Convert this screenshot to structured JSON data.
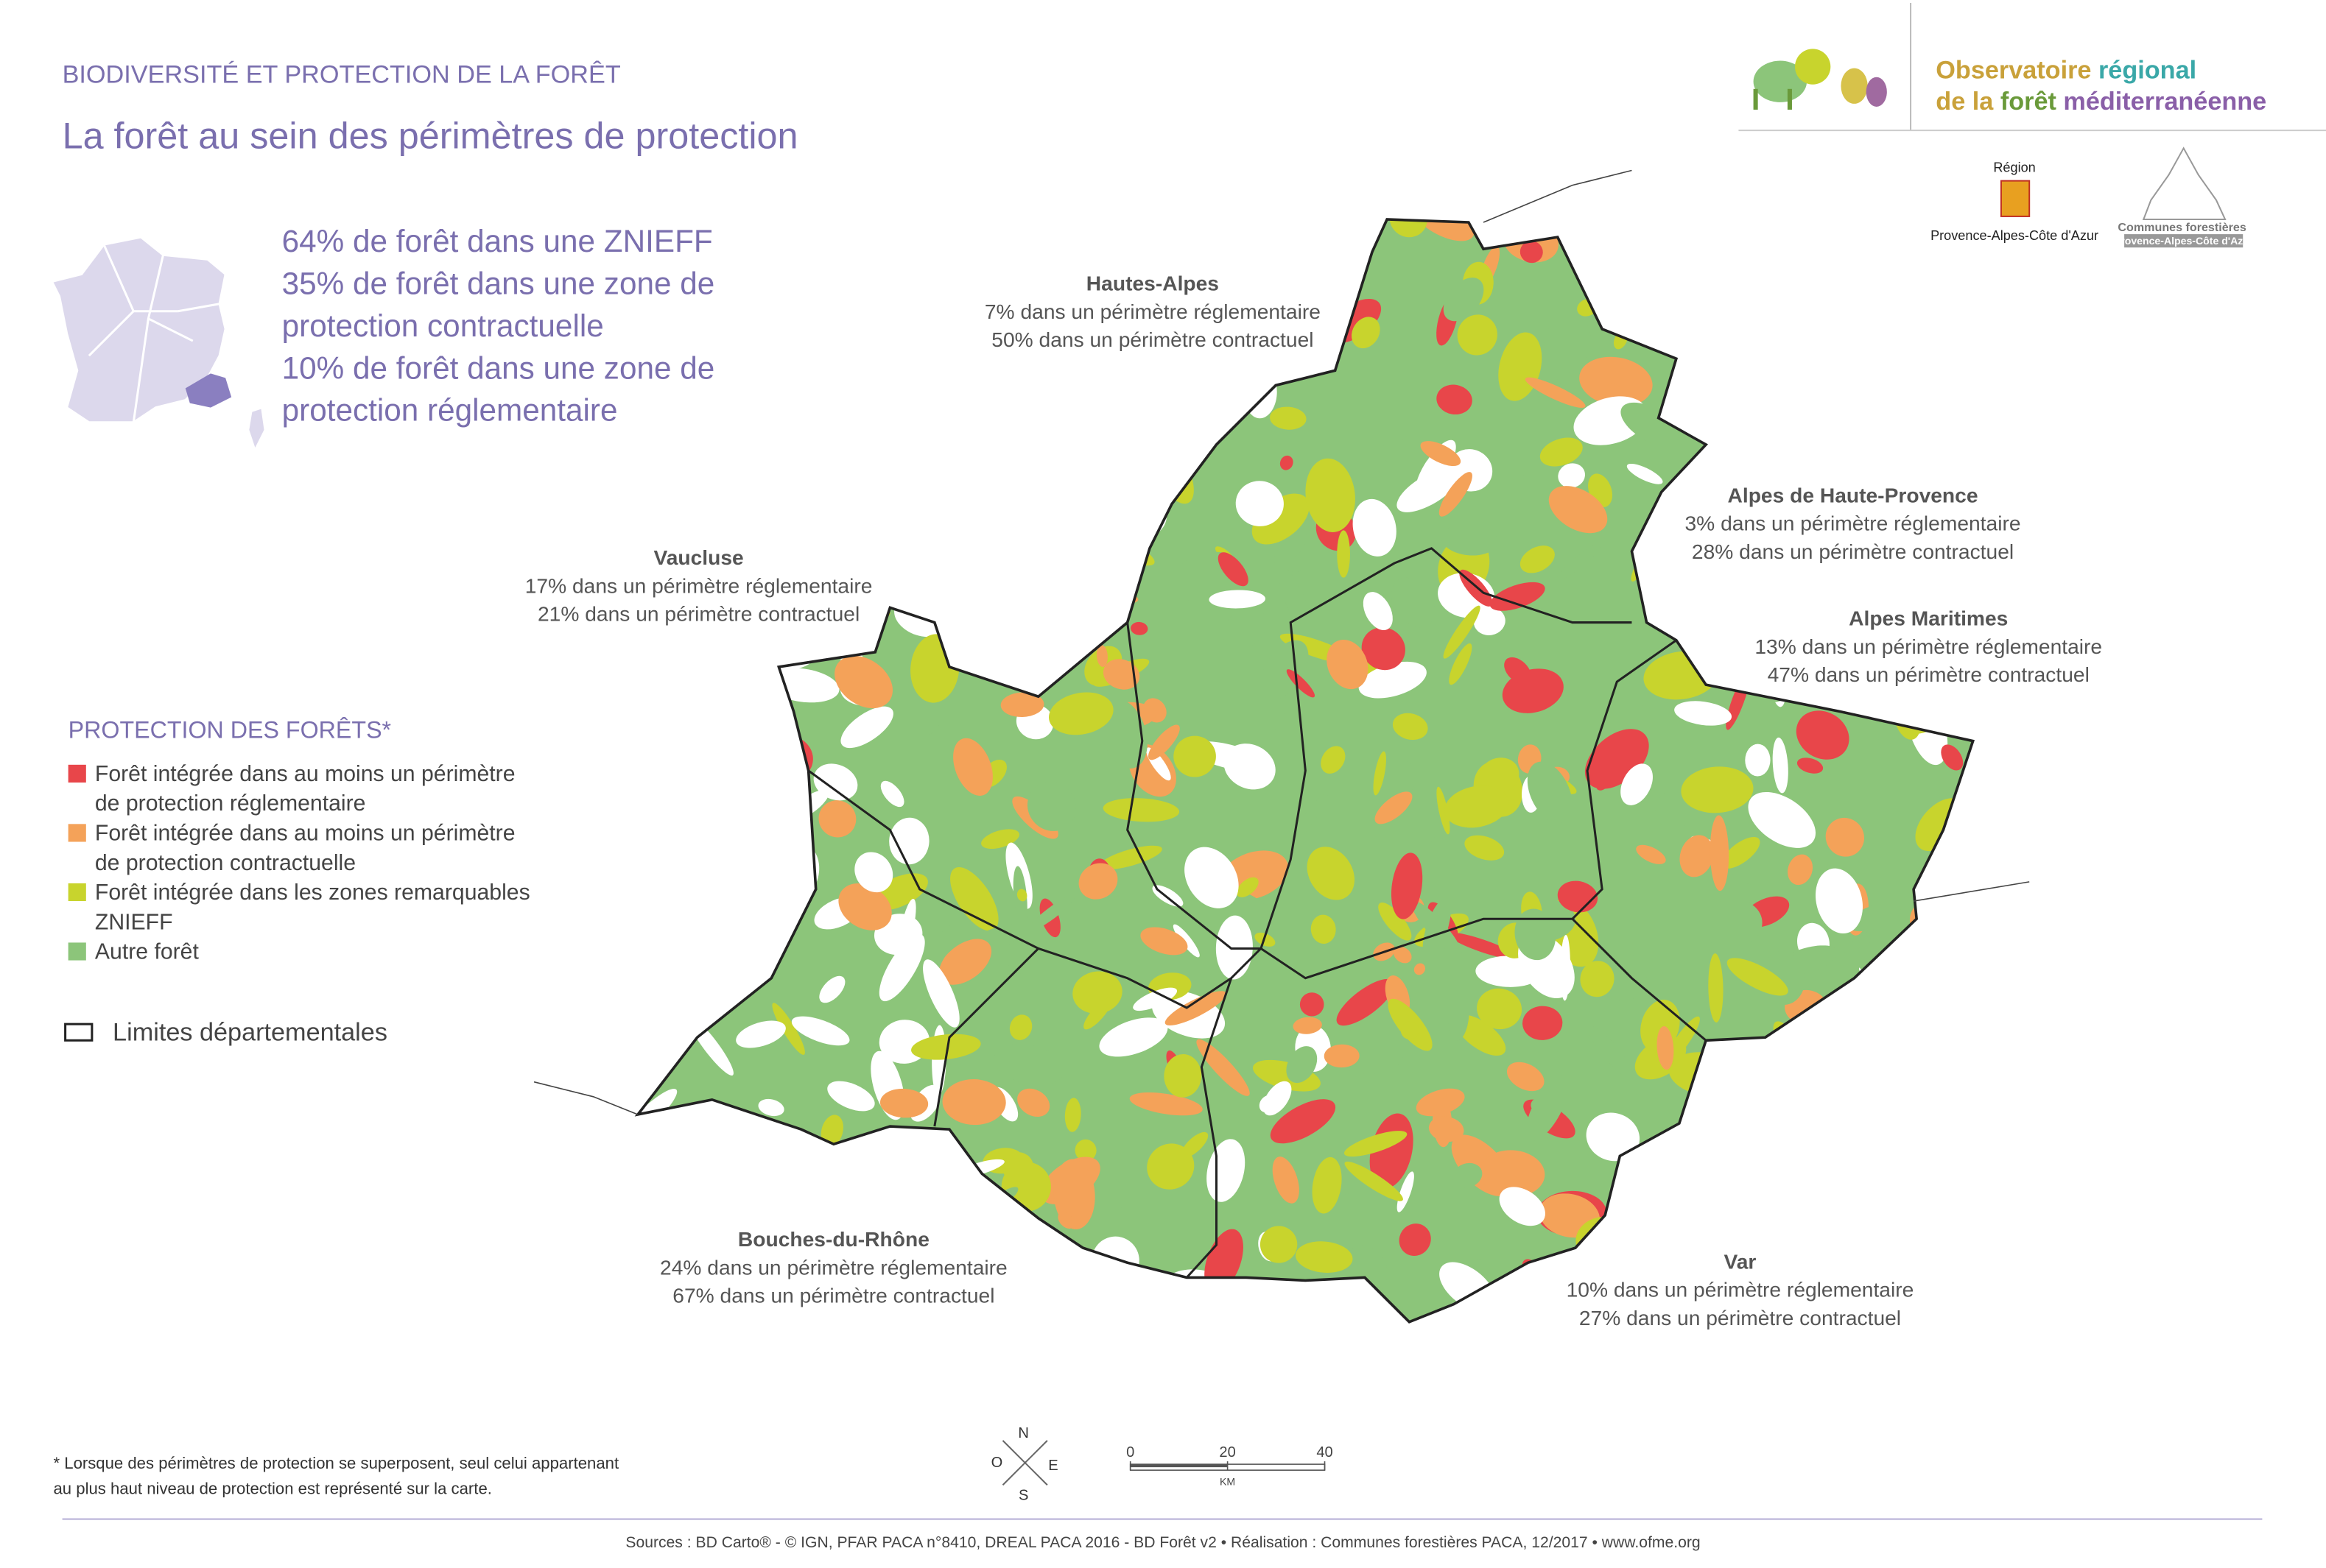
{
  "header": {
    "category": "BIODIVERSITÉ ET PROTECTION DE LA FORÊT",
    "title": "La forêt au sein des périmètres de protection"
  },
  "summary": [
    "64% de forêt dans une ZNIEFF",
    "35% de forêt dans une zone de",
    "protection contractuelle",
    "10% de forêt dans une zone de",
    "protection réglementaire"
  ],
  "departments": [
    {
      "name": "Hautes-Alpes",
      "lines": [
        "7% dans un périmètre réglementaire",
        "50% dans un périmètre contractuel"
      ]
    },
    {
      "name": "Alpes de Haute-Provence",
      "lines": [
        "3% dans un périmètre réglementaire",
        "28% dans un périmètre contractuel"
      ]
    },
    {
      "name": "Vaucluse",
      "lines": [
        "17% dans un périmètre réglementaire",
        "21% dans un périmètre contractuel"
      ]
    },
    {
      "name": "Alpes Maritimes",
      "lines": [
        "13% dans un périmètre réglementaire",
        "47% dans un périmètre contractuel"
      ]
    },
    {
      "name": "Bouches-du-Rhône",
      "lines": [
        "24% dans un périmètre réglementaire",
        "67% dans un périmètre contractuel"
      ]
    },
    {
      "name": "Var",
      "lines": [
        "10% dans un périmètre réglementaire",
        "27% dans un périmètre contractuel"
      ]
    }
  ],
  "legend": {
    "title": "PROTECTION DES FORÊTS*",
    "items": [
      {
        "lines": [
          "Forêt intégrée dans au moins un périmètre",
          "de protection réglementaire"
        ],
        "color": "#e8464a"
      },
      {
        "lines": [
          "Forêt intégrée dans au moins un périmètre",
          "de protection contractuelle"
        ],
        "color": "#f4a259"
      },
      {
        "lines": [
          "Forêt intégrée dans les zones remarquables",
          "ZNIEFF"
        ],
        "color": "#c8d42d"
      },
      {
        "lines": [
          "Autre forêt"
        ],
        "color": "#8cc57a"
      }
    ],
    "boundary": "Limites départementales"
  },
  "footnote": [
    "* Lorsque des périmètres de protection se superposent, seul celui appartenant",
    "au plus haut niveau de protection est représenté sur la carte."
  ],
  "compass": {
    "n": "N",
    "o": "O",
    "e": "E",
    "s": "S"
  },
  "scale": {
    "ticks": [
      0,
      20,
      40
    ],
    "unit": "KM"
  },
  "sources": "Sources : BD Carto® - © IGN, PFAR PACA n°8410, DREAL PACA 2016 - BD Forêt v2 • Réalisation : Communes forestières PACA, 12/2017 • www.ofme.org",
  "logos": {
    "ofme": [
      [
        "Observatoire",
        "régional"
      ],
      [
        "de la",
        "forêt",
        "méditerranéenne"
      ]
    ],
    "region": [
      "Région",
      "Provence-Alpes-Côte d'Azur"
    ],
    "communes": [
      "Communes forestières",
      "Provence-Alpes-Côte d'Azur"
    ]
  }
}
